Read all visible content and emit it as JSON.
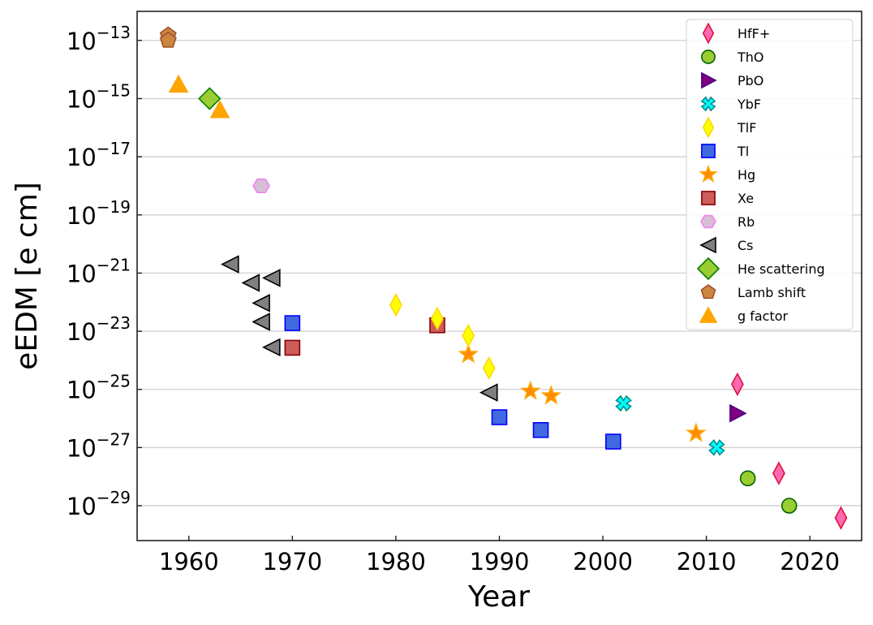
{
  "chart_data": {
    "type": "scatter",
    "title": "",
    "xlabel": "Year",
    "ylabel": "eEDM [e cm]",
    "xlim": [
      1955,
      2025
    ],
    "ylim_log10": [
      -30.2,
      -12
    ],
    "yscale": "log",
    "grid": "horizontal",
    "legend_position": "top-right",
    "x_ticks": [
      {
        "value": 1960,
        "label": "1960"
      },
      {
        "value": 1970,
        "label": "1970"
      },
      {
        "value": 1980,
        "label": "1980"
      },
      {
        "value": 1990,
        "label": "1990"
      },
      {
        "value": 2000,
        "label": "2000"
      },
      {
        "value": 2010,
        "label": "2010"
      },
      {
        "value": 2020,
        "label": "2020"
      }
    ],
    "y_ticks": [
      {
        "exp": -13,
        "base": "10",
        "sup": "−13"
      },
      {
        "exp": -15,
        "base": "10",
        "sup": "−15"
      },
      {
        "exp": -17,
        "base": "10",
        "sup": "−17"
      },
      {
        "exp": -19,
        "base": "10",
        "sup": "−19"
      },
      {
        "exp": -21,
        "base": "10",
        "sup": "−21"
      },
      {
        "exp": -23,
        "base": "10",
        "sup": "−23"
      },
      {
        "exp": -25,
        "base": "10",
        "sup": "−25"
      },
      {
        "exp": -27,
        "base": "10",
        "sup": "−27"
      },
      {
        "exp": -29,
        "base": "10",
        "sup": "−29"
      }
    ],
    "series": [
      {
        "name": "HfF+",
        "marker": "thin-diamond",
        "fill": "#ff69b4",
        "stroke": "#dc143c",
        "points": [
          [
            2013,
            1.5e-25
          ],
          [
            2017,
            1.3e-28
          ],
          [
            2023,
            3.8e-30
          ]
        ]
      },
      {
        "name": "ThO",
        "marker": "circle",
        "fill": "#9acd32",
        "stroke": "#006400",
        "points": [
          [
            2014,
            8.7e-29
          ],
          [
            2018,
            1e-29
          ]
        ]
      },
      {
        "name": "PbO",
        "marker": "triangle-right",
        "fill": "#800080",
        "stroke": "#4b0082",
        "points": [
          [
            2013,
            1.5e-26
          ]
        ]
      },
      {
        "name": "YbF",
        "marker": "x-filled",
        "fill": "#00ffff",
        "stroke": "#008b8b",
        "points": [
          [
            2002,
            3.3e-26
          ],
          [
            2011,
            1e-27
          ]
        ]
      },
      {
        "name": "TlF",
        "marker": "thin-diamond",
        "fill": "#ffff00",
        "stroke": "#ffd700",
        "points": [
          [
            1980,
            8e-23
          ],
          [
            1984,
            2.7e-23
          ],
          [
            1987,
            7e-24
          ],
          [
            1989,
            5.4e-25
          ]
        ]
      },
      {
        "name": "Tl",
        "marker": "square",
        "fill": "#4169e1",
        "stroke": "#0000ff",
        "points": [
          [
            1970,
            1.9e-23
          ],
          [
            1990,
            1.1e-26
          ],
          [
            1994,
            4e-27
          ],
          [
            2001,
            1.6e-27
          ]
        ]
      },
      {
        "name": "Hg",
        "marker": "star",
        "fill": "#ff8c00",
        "stroke": "#ffa500",
        "points": [
          [
            1987,
            1.6e-24
          ],
          [
            1993,
            8.7e-26
          ],
          [
            1995,
            6e-26
          ],
          [
            2009,
            3.1e-27
          ]
        ]
      },
      {
        "name": "Xe",
        "marker": "square",
        "fill": "#cd5c5c",
        "stroke": "#8b0000",
        "points": [
          [
            1970,
            2.7e-24
          ],
          [
            1984,
            1.6e-23
          ]
        ]
      },
      {
        "name": "Rb",
        "marker": "hexagon",
        "fill": "#d8bfd8",
        "stroke": "#ee82ee",
        "points": [
          [
            1967,
            1e-18
          ]
        ]
      },
      {
        "name": "Cs",
        "marker": "triangle-left",
        "fill": "#808080",
        "stroke": "#000000",
        "points": [
          [
            1964,
            2e-21
          ],
          [
            1966,
            4.6e-22
          ],
          [
            1968,
            6.8e-22
          ],
          [
            1967,
            9.3e-23
          ],
          [
            1967,
            2.1e-23
          ],
          [
            1968,
            2.8e-24
          ],
          [
            1989,
            7.8e-26
          ]
        ]
      },
      {
        "name": "He scattering",
        "marker": "diamond",
        "fill": "#9acd32",
        "stroke": "#008000",
        "points": [
          [
            1962,
            1e-15
          ]
        ]
      },
      {
        "name": "Lamb shift",
        "marker": "pentagon",
        "fill": "#cd853f",
        "stroke": "#a0522d",
        "points": [
          [
            1958,
            1.5e-13
          ],
          [
            1958,
            1e-13
          ]
        ]
      },
      {
        "name": "g factor",
        "marker": "triangle-up",
        "fill": "#ffa500",
        "stroke": "#ffa500",
        "points": [
          [
            1959,
            3e-15
          ],
          [
            1963,
            4e-16
          ]
        ]
      }
    ]
  }
}
